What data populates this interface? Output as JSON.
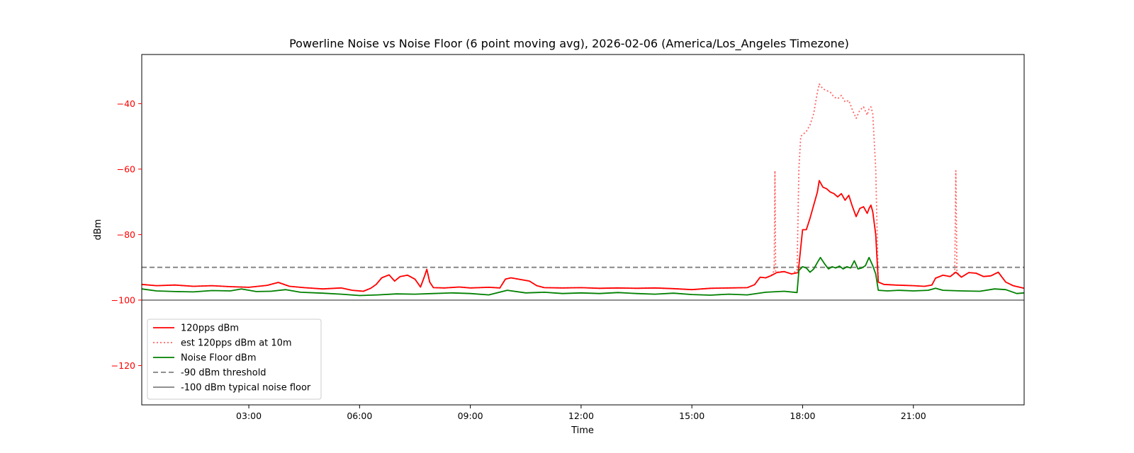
{
  "chart_data": {
    "type": "line",
    "title": "Powerline Noise vs Noise Floor (6 point moving avg), 2026-02-06 (America/Los_Angeles Timezone)",
    "xlabel": "Time",
    "ylabel": "dBm",
    "xlim_hours": [
      0.1,
      24.0
    ],
    "ylim": [
      -132,
      -25
    ],
    "x_ticks": [
      {
        "hour": 3,
        "label": "03:00"
      },
      {
        "hour": 6,
        "label": "06:00"
      },
      {
        "hour": 9,
        "label": "09:00"
      },
      {
        "hour": 12,
        "label": "12:00"
      },
      {
        "hour": 15,
        "label": "15:00"
      },
      {
        "hour": 18,
        "label": "18:00"
      },
      {
        "hour": 21,
        "label": "21:00"
      }
    ],
    "y_ticks": [
      {
        "value": -40,
        "label": "−40"
      },
      {
        "value": -60,
        "label": "−60"
      },
      {
        "value": -80,
        "label": "−80"
      },
      {
        "value": -100,
        "label": "−100"
      },
      {
        "value": -120,
        "label": "−120"
      }
    ],
    "ylabel_color": "#ff0000",
    "legend_position": "lower-left",
    "grid": false,
    "series": [
      {
        "name": "120pps dBm",
        "color": "#ff0000",
        "style": "solid",
        "points": [
          [
            0.1,
            -95.2
          ],
          [
            0.5,
            -95.6
          ],
          [
            1.0,
            -95.4
          ],
          [
            1.5,
            -95.8
          ],
          [
            2.0,
            -95.6
          ],
          [
            2.5,
            -95.9
          ],
          [
            3.0,
            -96.1
          ],
          [
            3.5,
            -95.5
          ],
          [
            3.8,
            -94.6
          ],
          [
            4.1,
            -95.8
          ],
          [
            4.5,
            -96.2
          ],
          [
            5.0,
            -96.6
          ],
          [
            5.5,
            -96.3
          ],
          [
            5.8,
            -97.0
          ],
          [
            6.1,
            -97.3
          ],
          [
            6.3,
            -96.4
          ],
          [
            6.45,
            -95.2
          ],
          [
            6.6,
            -93.2
          ],
          [
            6.8,
            -92.3
          ],
          [
            6.95,
            -94.2
          ],
          [
            7.1,
            -92.8
          ],
          [
            7.3,
            -92.4
          ],
          [
            7.5,
            -93.6
          ],
          [
            7.65,
            -96.0
          ],
          [
            7.75,
            -93.0
          ],
          [
            7.82,
            -90.6
          ],
          [
            7.9,
            -94.5
          ],
          [
            8.0,
            -96.2
          ],
          [
            8.3,
            -96.3
          ],
          [
            8.7,
            -96.0
          ],
          [
            9.0,
            -96.3
          ],
          [
            9.5,
            -96.1
          ],
          [
            9.8,
            -96.3
          ],
          [
            9.95,
            -93.6
          ],
          [
            10.1,
            -93.2
          ],
          [
            10.4,
            -93.8
          ],
          [
            10.6,
            -94.2
          ],
          [
            10.8,
            -95.6
          ],
          [
            11.0,
            -96.2
          ],
          [
            11.5,
            -96.3
          ],
          [
            12.0,
            -96.2
          ],
          [
            12.5,
            -96.4
          ],
          [
            13.0,
            -96.3
          ],
          [
            13.5,
            -96.4
          ],
          [
            14.0,
            -96.3
          ],
          [
            14.5,
            -96.5
          ],
          [
            15.0,
            -96.8
          ],
          [
            15.5,
            -96.4
          ],
          [
            16.0,
            -96.3
          ],
          [
            16.5,
            -96.2
          ],
          [
            16.7,
            -95.3
          ],
          [
            16.85,
            -93.0
          ],
          [
            17.0,
            -93.2
          ],
          [
            17.15,
            -92.5
          ],
          [
            17.3,
            -91.6
          ],
          [
            17.5,
            -91.3
          ],
          [
            17.7,
            -92.0
          ],
          [
            17.88,
            -91.6
          ],
          [
            17.95,
            -84.0
          ],
          [
            18.0,
            -78.5
          ],
          [
            18.1,
            -78.5
          ],
          [
            18.2,
            -75.0
          ],
          [
            18.3,
            -71.0
          ],
          [
            18.4,
            -67.0
          ],
          [
            18.45,
            -63.5
          ],
          [
            18.55,
            -65.5
          ],
          [
            18.65,
            -66.0
          ],
          [
            18.75,
            -67.0
          ],
          [
            18.85,
            -67.5
          ],
          [
            18.95,
            -68.5
          ],
          [
            19.05,
            -67.5
          ],
          [
            19.15,
            -69.5
          ],
          [
            19.25,
            -68.0
          ],
          [
            19.35,
            -71.5
          ],
          [
            19.45,
            -74.5
          ],
          [
            19.55,
            -72.0
          ],
          [
            19.65,
            -71.5
          ],
          [
            19.75,
            -73.5
          ],
          [
            19.8,
            -72.0
          ],
          [
            19.85,
            -71.0
          ],
          [
            19.9,
            -73.0
          ],
          [
            19.98,
            -80.0
          ],
          [
            20.05,
            -94.5
          ],
          [
            20.2,
            -95.2
          ],
          [
            20.5,
            -95.4
          ],
          [
            21.0,
            -95.6
          ],
          [
            21.3,
            -95.8
          ],
          [
            21.5,
            -95.4
          ],
          [
            21.6,
            -93.3
          ],
          [
            21.8,
            -92.4
          ],
          [
            22.0,
            -92.8
          ],
          [
            22.15,
            -91.5
          ],
          [
            22.3,
            -93.0
          ],
          [
            22.5,
            -91.6
          ],
          [
            22.7,
            -91.8
          ],
          [
            22.9,
            -92.8
          ],
          [
            23.1,
            -92.6
          ],
          [
            23.3,
            -91.5
          ],
          [
            23.5,
            -94.5
          ],
          [
            23.7,
            -95.6
          ],
          [
            24.0,
            -96.4
          ]
        ]
      },
      {
        "name": "est 120pps dBm at 10m",
        "color": "#ff6666",
        "style": "dotted",
        "points": [
          [
            0.1,
            -95.2
          ],
          [
            0.5,
            -95.6
          ],
          [
            1.0,
            -95.4
          ],
          [
            1.5,
            -95.8
          ],
          [
            2.0,
            -95.6
          ],
          [
            2.5,
            -95.9
          ],
          [
            3.0,
            -96.1
          ],
          [
            3.5,
            -95.5
          ],
          [
            3.8,
            -94.6
          ],
          [
            4.1,
            -95.8
          ],
          [
            4.5,
            -96.2
          ],
          [
            5.0,
            -96.6
          ],
          [
            5.5,
            -96.3
          ],
          [
            5.8,
            -97.0
          ],
          [
            6.1,
            -97.3
          ],
          [
            6.3,
            -96.4
          ],
          [
            6.45,
            -95.2
          ],
          [
            6.6,
            -93.2
          ],
          [
            6.8,
            -92.3
          ],
          [
            6.95,
            -94.2
          ],
          [
            7.1,
            -92.8
          ],
          [
            7.3,
            -92.4
          ],
          [
            7.5,
            -93.6
          ],
          [
            7.65,
            -96.0
          ],
          [
            7.75,
            -93.0
          ],
          [
            7.82,
            -90.6
          ],
          [
            7.9,
            -94.5
          ],
          [
            8.0,
            -96.2
          ],
          [
            8.3,
            -96.3
          ],
          [
            8.7,
            -96.0
          ],
          [
            9.0,
            -96.3
          ],
          [
            9.5,
            -96.1
          ],
          [
            9.8,
            -96.3
          ],
          [
            9.95,
            -93.6
          ],
          [
            10.1,
            -93.2
          ],
          [
            10.4,
            -93.8
          ],
          [
            10.6,
            -94.2
          ],
          [
            10.8,
            -95.6
          ],
          [
            11.0,
            -96.2
          ],
          [
            11.5,
            -96.3
          ],
          [
            12.0,
            -96.2
          ],
          [
            12.5,
            -96.4
          ],
          [
            13.0,
            -96.3
          ],
          [
            13.5,
            -96.4
          ],
          [
            14.0,
            -96.3
          ],
          [
            14.5,
            -96.5
          ],
          [
            15.0,
            -96.8
          ],
          [
            15.5,
            -96.4
          ],
          [
            16.0,
            -96.3
          ],
          [
            16.5,
            -96.2
          ],
          [
            16.7,
            -95.3
          ],
          [
            16.85,
            -93.0
          ],
          [
            17.0,
            -93.2
          ],
          [
            17.15,
            -92.5
          ],
          [
            17.23,
            -91.0
          ],
          [
            17.25,
            -60.5
          ],
          [
            17.27,
            -91.5
          ],
          [
            17.5,
            -91.3
          ],
          [
            17.7,
            -92.0
          ],
          [
            17.85,
            -91.0
          ],
          [
            17.9,
            -60.0
          ],
          [
            17.95,
            -50.0
          ],
          [
            18.1,
            -48.5
          ],
          [
            18.2,
            -46.5
          ],
          [
            18.3,
            -43.0
          ],
          [
            18.4,
            -36.5
          ],
          [
            18.45,
            -34.0
          ],
          [
            18.55,
            -35.5
          ],
          [
            18.65,
            -36.0
          ],
          [
            18.75,
            -36.5
          ],
          [
            18.85,
            -38.0
          ],
          [
            18.95,
            -38.5
          ],
          [
            19.05,
            -37.5
          ],
          [
            19.15,
            -39.5
          ],
          [
            19.25,
            -39.0
          ],
          [
            19.35,
            -42.0
          ],
          [
            19.45,
            -44.5
          ],
          [
            19.55,
            -42.0
          ],
          [
            19.65,
            -41.0
          ],
          [
            19.75,
            -43.5
          ],
          [
            19.8,
            -41.5
          ],
          [
            19.85,
            -41.0
          ],
          [
            19.9,
            -43.0
          ],
          [
            19.98,
            -60.0
          ],
          [
            20.05,
            -94.5
          ],
          [
            20.2,
            -95.2
          ],
          [
            20.5,
            -95.4
          ],
          [
            21.0,
            -95.6
          ],
          [
            21.3,
            -95.8
          ],
          [
            21.5,
            -95.4
          ],
          [
            21.6,
            -93.3
          ],
          [
            21.8,
            -92.4
          ],
          [
            22.0,
            -92.8
          ],
          [
            22.12,
            -91.5
          ],
          [
            22.15,
            -60.5
          ],
          [
            22.18,
            -91.5
          ],
          [
            22.3,
            -93.0
          ],
          [
            22.5,
            -91.6
          ],
          [
            22.7,
            -91.8
          ],
          [
            22.9,
            -92.8
          ],
          [
            23.1,
            -92.6
          ],
          [
            23.3,
            -91.5
          ],
          [
            23.5,
            -94.5
          ],
          [
            23.7,
            -95.6
          ],
          [
            24.0,
            -96.4
          ]
        ]
      },
      {
        "name": "Noise Floor dBm",
        "color": "#008000",
        "style": "solid",
        "points": [
          [
            0.1,
            -96.6
          ],
          [
            0.5,
            -97.2
          ],
          [
            1.0,
            -97.4
          ],
          [
            1.5,
            -97.5
          ],
          [
            2.0,
            -97.1
          ],
          [
            2.5,
            -97.2
          ],
          [
            2.8,
            -96.6
          ],
          [
            3.2,
            -97.4
          ],
          [
            3.6,
            -97.3
          ],
          [
            4.0,
            -96.8
          ],
          [
            4.4,
            -97.6
          ],
          [
            5.0,
            -97.9
          ],
          [
            5.5,
            -98.2
          ],
          [
            6.0,
            -98.6
          ],
          [
            6.5,
            -98.4
          ],
          [
            7.0,
            -98.1
          ],
          [
            7.5,
            -98.2
          ],
          [
            8.0,
            -98.0
          ],
          [
            8.5,
            -97.8
          ],
          [
            9.0,
            -98.0
          ],
          [
            9.5,
            -98.4
          ],
          [
            10.0,
            -97.0
          ],
          [
            10.5,
            -97.8
          ],
          [
            11.0,
            -97.6
          ],
          [
            11.5,
            -98.0
          ],
          [
            12.0,
            -97.8
          ],
          [
            12.5,
            -98.0
          ],
          [
            13.0,
            -97.7
          ],
          [
            13.5,
            -98.0
          ],
          [
            14.0,
            -98.2
          ],
          [
            14.5,
            -97.9
          ],
          [
            15.0,
            -98.3
          ],
          [
            15.5,
            -98.5
          ],
          [
            16.0,
            -98.2
          ],
          [
            16.5,
            -98.4
          ],
          [
            17.0,
            -97.6
          ],
          [
            17.5,
            -97.3
          ],
          [
            17.85,
            -97.7
          ],
          [
            17.9,
            -91.0
          ],
          [
            18.0,
            -89.8
          ],
          [
            18.1,
            -90.2
          ],
          [
            18.2,
            -91.5
          ],
          [
            18.3,
            -90.5
          ],
          [
            18.4,
            -88.5
          ],
          [
            18.48,
            -87.0
          ],
          [
            18.6,
            -89.0
          ],
          [
            18.7,
            -90.5
          ],
          [
            18.8,
            -89.8
          ],
          [
            18.9,
            -90.2
          ],
          [
            19.0,
            -89.6
          ],
          [
            19.1,
            -90.5
          ],
          [
            19.2,
            -89.8
          ],
          [
            19.3,
            -90.2
          ],
          [
            19.4,
            -88.0
          ],
          [
            19.5,
            -90.5
          ],
          [
            19.6,
            -90.2
          ],
          [
            19.7,
            -89.5
          ],
          [
            19.8,
            -87.0
          ],
          [
            19.9,
            -89.5
          ],
          [
            19.98,
            -92.0
          ],
          [
            20.05,
            -97.0
          ],
          [
            20.3,
            -97.2
          ],
          [
            20.6,
            -97.0
          ],
          [
            21.0,
            -97.2
          ],
          [
            21.4,
            -97.0
          ],
          [
            21.6,
            -96.4
          ],
          [
            21.8,
            -97.0
          ],
          [
            22.3,
            -97.2
          ],
          [
            22.8,
            -97.3
          ],
          [
            23.2,
            -96.6
          ],
          [
            23.5,
            -96.8
          ],
          [
            23.8,
            -98.0
          ],
          [
            24.0,
            -97.8
          ]
        ]
      },
      {
        "name": "-90 dBm threshold",
        "color": "#808080",
        "style": "dashed",
        "points": [
          [
            0.1,
            -90
          ],
          [
            24.0,
            -90
          ]
        ]
      },
      {
        "name": "-100 dBm typical noise floor",
        "color": "#808080",
        "style": "solid",
        "points": [
          [
            0.1,
            -100
          ],
          [
            24.0,
            -100
          ]
        ]
      }
    ]
  }
}
